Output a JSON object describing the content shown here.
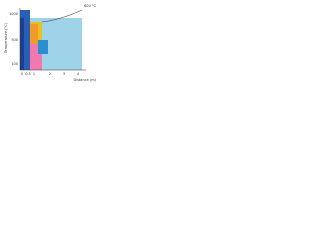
{
  "y_axis": {
    "label": "Temperature (°C)",
    "ticks": [
      "1000",
      "500",
      "100"
    ]
  },
  "x_axis": {
    "label": "Distance (m)",
    "ticks": [
      "0",
      "0.5",
      "1",
      "2",
      "3",
      "4"
    ]
  },
  "legend": "600 °C"
}
